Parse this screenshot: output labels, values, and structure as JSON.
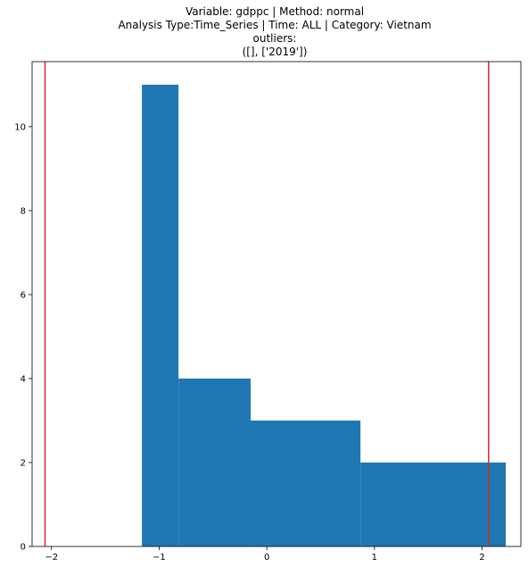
{
  "chart_data": {
    "type": "bar",
    "title_lines": [
      "Variable: gdppc | Method: normal",
      "Analysis Type:Time_Series | Time: ALL | Category: Vietnam",
      "outliers:",
      "([], ['2019'])"
    ],
    "xlabel": "",
    "ylabel": "",
    "xlim": [
      -2.18,
      2.36
    ],
    "ylim": [
      0,
      11.55
    ],
    "x_ticks": [
      -2,
      -1,
      0,
      1,
      2
    ],
    "x_tick_labels": [
      "−2",
      "−1",
      "0",
      "1",
      "2"
    ],
    "y_ticks": [
      0,
      2,
      4,
      6,
      8,
      10
    ],
    "y_tick_labels": [
      "0",
      "2",
      "4",
      "6",
      "8",
      "10"
    ],
    "bins": [
      {
        "x0": -1.16,
        "x1": -0.82,
        "count": 11
      },
      {
        "x0": -0.82,
        "x1": -0.15,
        "count": 4
      },
      {
        "x0": -0.15,
        "x1": 0.87,
        "count": 3
      },
      {
        "x0": 0.87,
        "x1": 2.22,
        "count": 2
      }
    ],
    "vlines": [
      -2.06,
      2.06
    ],
    "colors": {
      "bar": "#1f77b4",
      "vline": "#d62728",
      "axis": "#000000"
    }
  }
}
